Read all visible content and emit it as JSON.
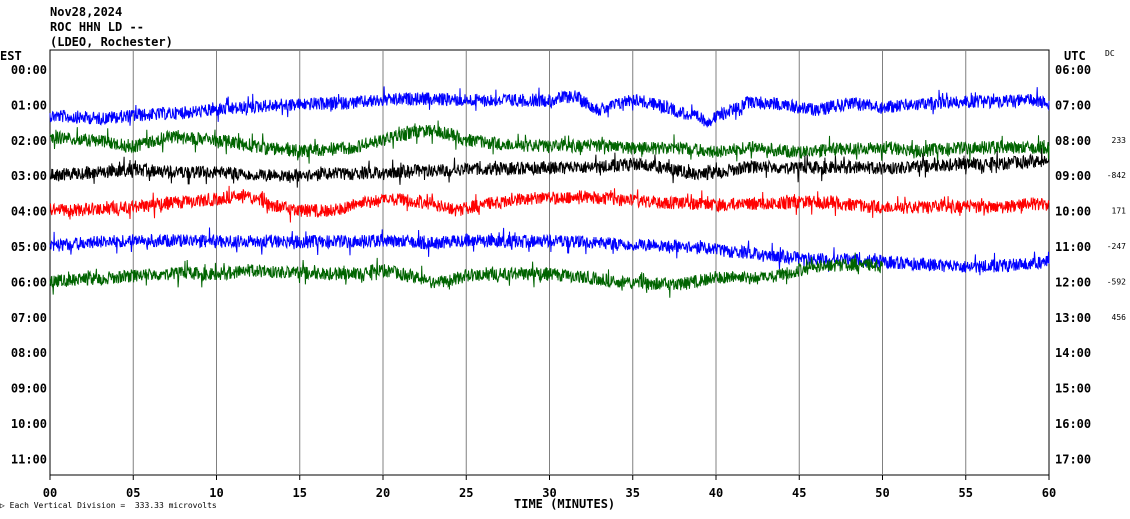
{
  "header": {
    "date": "Nov28,2024",
    "channel": "ROC HHN LD --",
    "network": "(LDEO, Rochester)"
  },
  "axis_titles": {
    "left": "EST",
    "right": "UTC",
    "dc": "DC",
    "x": "TIME (MINUTES)",
    "scale_note": "Each Vertical Division =  333.33 microvolts"
  },
  "chart_data": {
    "type": "line",
    "title": "",
    "xlabel": "TIME (MINUTES)",
    "ylabel": "EST",
    "xlim": [
      0,
      60
    ],
    "x_ticks": [
      "00",
      "05",
      "10",
      "15",
      "20",
      "25",
      "30",
      "35",
      "40",
      "45",
      "50",
      "55",
      "60"
    ],
    "rows_est": [
      "00:00",
      "01:00",
      "02:00",
      "03:00",
      "04:00",
      "05:00",
      "06:00",
      "07:00",
      "08:00",
      "09:00",
      "10:00",
      "11:00"
    ],
    "rows_utc": [
      "06:00",
      "07:00",
      "08:00",
      "09:00",
      "10:00",
      "11:00",
      "12:00",
      "13:00",
      "14:00",
      "15:00",
      "16:00",
      "17:00"
    ],
    "dc_offsets": [
      "",
      "",
      "233",
      "-842",
      "171",
      "-247",
      "-592",
      "456",
      "",
      "",
      "",
      ""
    ],
    "grid": "vertical",
    "trace_colors": [
      "#0000ff",
      "#006400",
      "#000000",
      "#ff0000"
    ],
    "series": [
      {
        "row": 1,
        "color": "#0000ff",
        "end_minute": 60,
        "x": [
          0,
          3,
          5,
          8,
          10,
          13,
          15,
          18,
          20,
          22,
          25,
          28,
          30,
          31.5,
          33,
          35,
          37,
          39.5,
          42,
          44,
          46,
          48,
          50,
          52,
          55,
          57,
          59,
          60
        ],
        "y": [
          -0.8,
          -1.0,
          -0.8,
          -0.6,
          -0.4,
          -0.1,
          0.0,
          0.1,
          0.3,
          0.4,
          0.3,
          0.3,
          0.3,
          0.6,
          -0.4,
          0.4,
          -0.2,
          -1.2,
          0.2,
          0.0,
          -0.4,
          0.1,
          -0.2,
          0.0,
          0.2,
          0.2,
          0.3,
          0.0
        ]
      },
      {
        "row": 2,
        "color": "#006400",
        "end_minute": 60,
        "x": [
          0,
          3,
          5,
          7,
          10,
          13,
          15,
          18,
          20,
          22,
          23.5,
          25,
          27,
          30,
          33,
          35,
          38,
          40,
          42,
          45,
          47,
          50,
          52,
          55,
          57,
          59,
          60
        ],
        "y": [
          0.2,
          -0.1,
          -0.5,
          0.2,
          0.0,
          -0.6,
          -0.8,
          -0.6,
          0.0,
          0.6,
          0.6,
          0.0,
          -0.3,
          -0.5,
          -0.4,
          -0.6,
          -0.6,
          -0.9,
          -0.5,
          -0.9,
          -0.7,
          -0.5,
          -0.8,
          -0.6,
          -0.5,
          -0.6,
          -0.5
        ]
      },
      {
        "row": 3,
        "color": "#000000",
        "end_minute": 60,
        "x": [
          0,
          3,
          5,
          8,
          10,
          13,
          15,
          18,
          20,
          22,
          25,
          28,
          30,
          33,
          35,
          37,
          39,
          42,
          45,
          48,
          50,
          52,
          55,
          57,
          59,
          60
        ],
        "y": [
          0.0,
          0.2,
          0.4,
          0.2,
          0.2,
          0.0,
          0.0,
          0.1,
          0.2,
          0.3,
          0.4,
          0.5,
          0.5,
          0.6,
          0.8,
          0.5,
          0.0,
          0.6,
          0.5,
          0.6,
          0.5,
          0.6,
          0.8,
          0.8,
          1.0,
          0.9
        ]
      },
      {
        "row": 4,
        "color": "#ff0000",
        "end_minute": 60,
        "x": [
          0,
          3,
          5,
          6,
          8,
          10,
          11.5,
          13,
          15,
          17,
          19,
          21,
          23,
          24.5,
          25,
          27,
          29,
          30,
          32,
          35,
          38,
          40,
          43,
          45,
          47,
          49,
          52,
          55,
          57,
          59,
          60
        ],
        "y": [
          0.0,
          0.1,
          0.3,
          0.4,
          0.6,
          0.8,
          1.2,
          0.5,
          0.0,
          0.0,
          0.6,
          0.8,
          0.5,
          0.0,
          0.2,
          0.6,
          0.9,
          0.9,
          1.0,
          0.7,
          0.5,
          0.4,
          0.5,
          0.6,
          0.6,
          0.3,
          0.2,
          0.3,
          0.2,
          0.5,
          0.4
        ]
      },
      {
        "row": 5,
        "color": "#0000ff",
        "end_minute": 60,
        "x": [
          0,
          3,
          5,
          8,
          10,
          12,
          15,
          18,
          20,
          23,
          25,
          28,
          30,
          33,
          35,
          38,
          40,
          43,
          45,
          48,
          50,
          52,
          55,
          57,
          59,
          60
        ],
        "y": [
          0.0,
          0.3,
          0.4,
          0.4,
          0.3,
          0.4,
          0.3,
          0.3,
          0.4,
          0.2,
          0.4,
          0.3,
          0.4,
          0.2,
          0.1,
          0.0,
          -0.3,
          -0.6,
          -0.9,
          -1.0,
          -1.1,
          -1.3,
          -1.5,
          -1.4,
          -1.3,
          -1.1
        ]
      },
      {
        "row": 6,
        "color": "#006400",
        "end_minute": 50,
        "x": [
          0,
          3,
          5,
          8,
          10,
          12,
          15,
          18,
          20,
          22,
          23,
          25,
          28,
          30,
          32,
          35,
          38,
          40,
          43,
          45,
          46,
          48,
          50
        ],
        "y": [
          0.0,
          0.2,
          0.4,
          0.6,
          0.5,
          0.8,
          0.6,
          0.5,
          0.8,
          0.3,
          -0.2,
          0.4,
          0.6,
          0.5,
          0.3,
          -0.1,
          -0.2,
          0.3,
          0.2,
          0.8,
          1.1,
          1.2,
          1.1
        ]
      }
    ]
  }
}
